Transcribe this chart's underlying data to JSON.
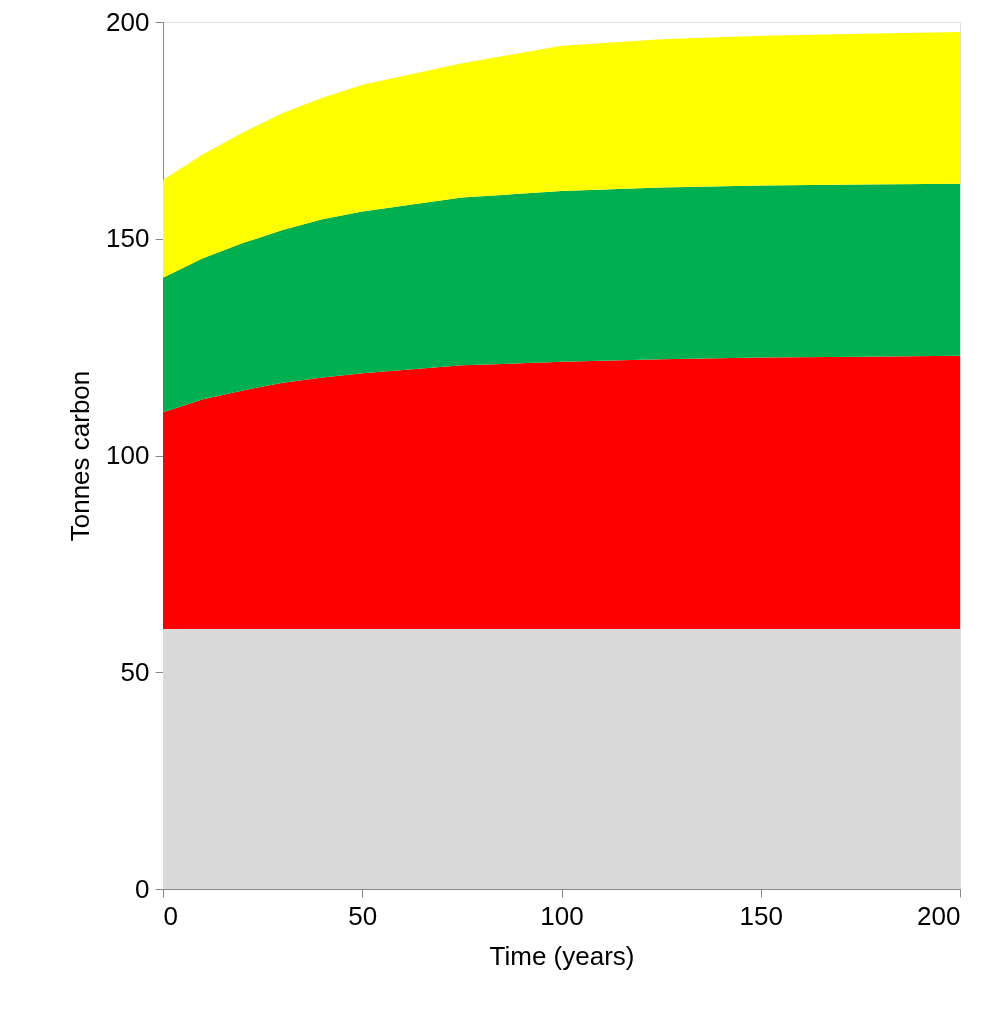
{
  "chart_data": {
    "type": "area",
    "stacked": true,
    "xlabel": "Time (years)",
    "ylabel": "Tonnes carbon",
    "x": [
      0,
      10,
      20,
      30,
      40,
      50,
      75,
      100,
      125,
      150,
      175,
      200
    ],
    "xlim": [
      0,
      200
    ],
    "xticks": [
      0,
      50,
      100,
      150,
      200
    ],
    "ylim": [
      0,
      200
    ],
    "yticks": [
      0,
      50,
      100,
      150,
      200
    ],
    "series": [
      {
        "color": "#d9d9d9",
        "values": [
          60,
          60,
          60,
          60,
          60,
          60,
          60,
          60,
          60,
          60,
          60,
          60
        ]
      },
      {
        "color": "#ff0000",
        "values": [
          50,
          53,
          55,
          56.8,
          58,
          59,
          60.8,
          61.6,
          62.2,
          62.6,
          62.8,
          63
        ]
      },
      {
        "color": "#00b050",
        "values": [
          31,
          32.5,
          34,
          35.2,
          36.5,
          37.3,
          38.7,
          39.4,
          39.6,
          39.7,
          39.7,
          39.7
        ]
      },
      {
        "color": "#ffff00",
        "values": [
          22.6,
          24,
          25.5,
          27,
          28,
          29.2,
          31,
          33.5,
          34.2,
          34.5,
          34.8,
          35.0
        ]
      }
    ]
  }
}
